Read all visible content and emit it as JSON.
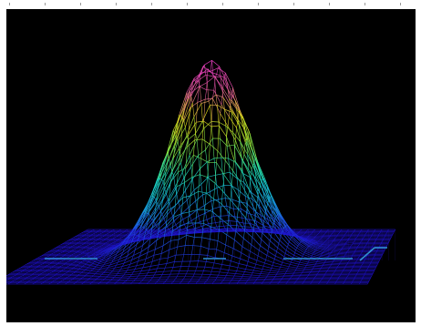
{
  "viewer": {
    "background_color": "#000000",
    "frame_color": "#ffffff",
    "tick_color": "#9a9a9a",
    "axis_color": "#2f8fd0"
  },
  "surface": {
    "shape": "gaussian-peak",
    "render_style": "wireframe",
    "colormap": [
      "#1e10c8",
      "#1f4ee6",
      "#17b0e0",
      "#1ee0b4",
      "#8ee63c",
      "#e6e01e",
      "#e65aa0",
      "#ee3cc8"
    ]
  }
}
